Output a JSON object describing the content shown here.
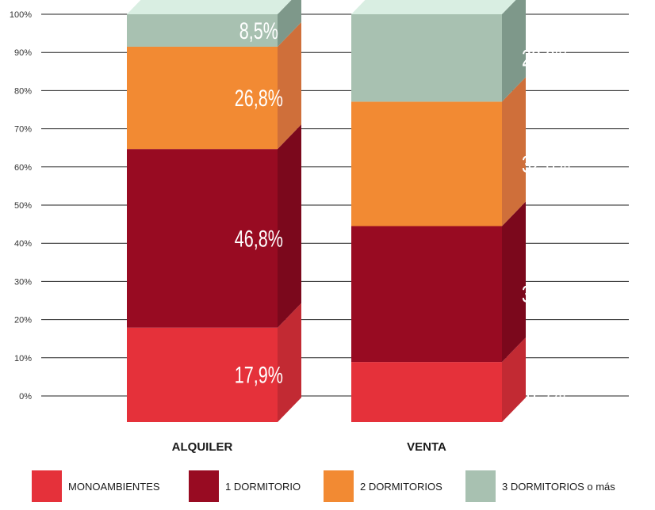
{
  "chart_data": {
    "type": "bar",
    "stacked": true,
    "categories": [
      "ALQUILER",
      "VENTA"
    ],
    "series": [
      {
        "name": "MONOAMBIENTES",
        "values": [
          17.9,
          8.9
        ],
        "labels": [
          "17,9%",
          "8,9%"
        ],
        "color": "#e5313a",
        "side_color": "#c22a33"
      },
      {
        "name": "1 DORMITORIO",
        "values": [
          46.8,
          35.6
        ],
        "labels": [
          "46,8%",
          "35,6%"
        ],
        "color": "#980b22",
        "side_color": "#7b081c"
      },
      {
        "name": "2 DORMITORIOS",
        "values": [
          26.8,
          32.6
        ],
        "labels": [
          "26,8%",
          "32,6%"
        ],
        "color": "#f28a33",
        "side_color": "#cf6f3a"
      },
      {
        "name": "3 DORMITORIOS o más",
        "values": [
          8.5,
          22.9
        ],
        "labels": [
          "8,5%",
          "22,9%"
        ],
        "color": "#a8c1b1",
        "side_color": "#7e988a"
      }
    ],
    "top_color": "#d9eee2",
    "ylim": [
      0,
      100
    ],
    "yticks": [
      "0%",
      "10%",
      "20%",
      "30%",
      "40%",
      "50%",
      "60%",
      "70%",
      "80%",
      "90%",
      "100%"
    ],
    "grid": true,
    "legend": "bottom",
    "style": "3d-stacked-columns"
  }
}
